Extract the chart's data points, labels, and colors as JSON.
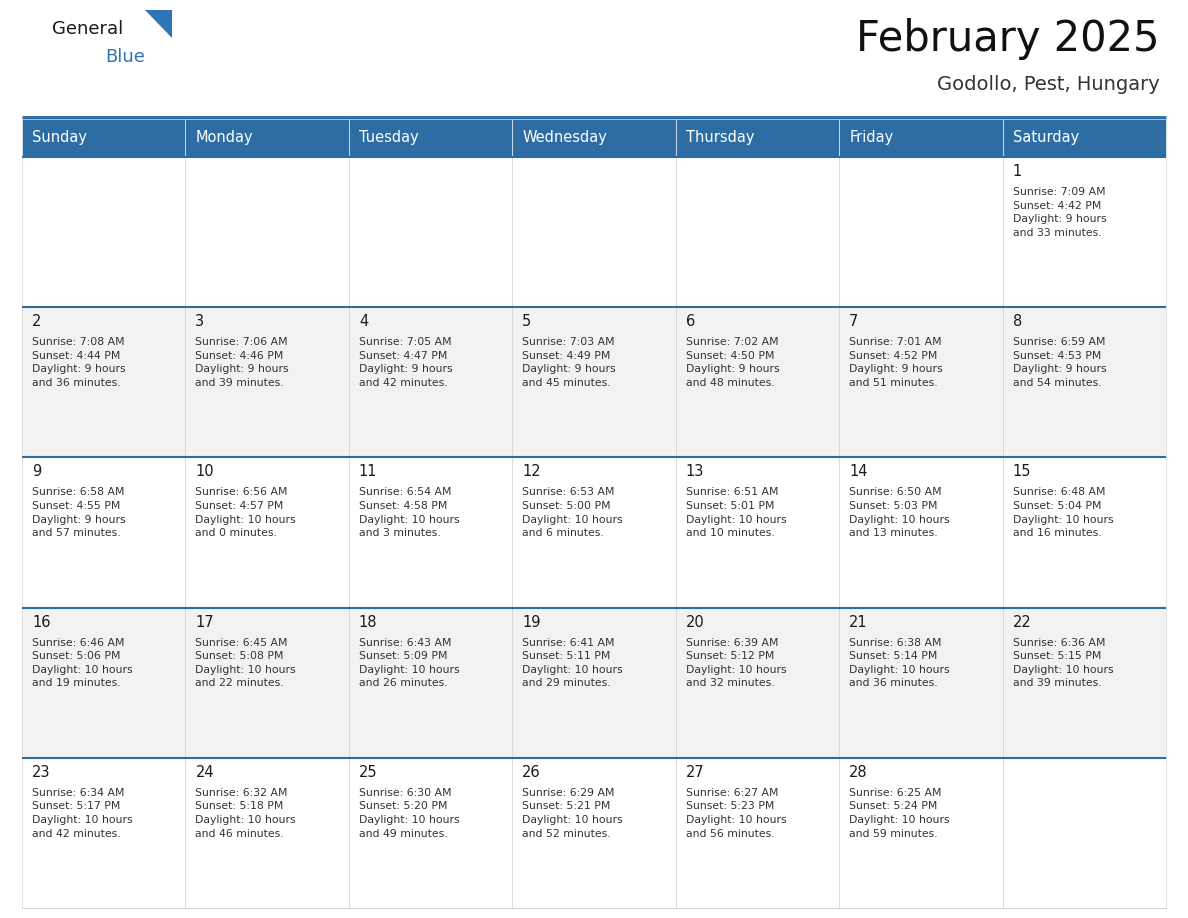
{
  "title": "February 2025",
  "subtitle": "Godollo, Pest, Hungary",
  "header_color": "#2E6DA4",
  "header_text_color": "#FFFFFF",
  "bg_color": "#FFFFFF",
  "cell_bg_white": "#FFFFFF",
  "cell_bg_gray": "#F2F2F2",
  "row_border_color": "#2E6DA4",
  "cell_border_color": "#CCCCCC",
  "text_color": "#1a1a1a",
  "info_color": "#333333",
  "logo_general_color": "#1a1a1a",
  "logo_blue_color": "#2E75B6",
  "logo_triangle_color": "#2E75B6",
  "days_of_week": [
    "Sunday",
    "Monday",
    "Tuesday",
    "Wednesday",
    "Thursday",
    "Friday",
    "Saturday"
  ],
  "calendar": [
    [
      {
        "day": null,
        "info": ""
      },
      {
        "day": null,
        "info": ""
      },
      {
        "day": null,
        "info": ""
      },
      {
        "day": null,
        "info": ""
      },
      {
        "day": null,
        "info": ""
      },
      {
        "day": null,
        "info": ""
      },
      {
        "day": 1,
        "info": "Sunrise: 7:09 AM\nSunset: 4:42 PM\nDaylight: 9 hours\nand 33 minutes."
      }
    ],
    [
      {
        "day": 2,
        "info": "Sunrise: 7:08 AM\nSunset: 4:44 PM\nDaylight: 9 hours\nand 36 minutes."
      },
      {
        "day": 3,
        "info": "Sunrise: 7:06 AM\nSunset: 4:46 PM\nDaylight: 9 hours\nand 39 minutes."
      },
      {
        "day": 4,
        "info": "Sunrise: 7:05 AM\nSunset: 4:47 PM\nDaylight: 9 hours\nand 42 minutes."
      },
      {
        "day": 5,
        "info": "Sunrise: 7:03 AM\nSunset: 4:49 PM\nDaylight: 9 hours\nand 45 minutes."
      },
      {
        "day": 6,
        "info": "Sunrise: 7:02 AM\nSunset: 4:50 PM\nDaylight: 9 hours\nand 48 minutes."
      },
      {
        "day": 7,
        "info": "Sunrise: 7:01 AM\nSunset: 4:52 PM\nDaylight: 9 hours\nand 51 minutes."
      },
      {
        "day": 8,
        "info": "Sunrise: 6:59 AM\nSunset: 4:53 PM\nDaylight: 9 hours\nand 54 minutes."
      }
    ],
    [
      {
        "day": 9,
        "info": "Sunrise: 6:58 AM\nSunset: 4:55 PM\nDaylight: 9 hours\nand 57 minutes."
      },
      {
        "day": 10,
        "info": "Sunrise: 6:56 AM\nSunset: 4:57 PM\nDaylight: 10 hours\nand 0 minutes."
      },
      {
        "day": 11,
        "info": "Sunrise: 6:54 AM\nSunset: 4:58 PM\nDaylight: 10 hours\nand 3 minutes."
      },
      {
        "day": 12,
        "info": "Sunrise: 6:53 AM\nSunset: 5:00 PM\nDaylight: 10 hours\nand 6 minutes."
      },
      {
        "day": 13,
        "info": "Sunrise: 6:51 AM\nSunset: 5:01 PM\nDaylight: 10 hours\nand 10 minutes."
      },
      {
        "day": 14,
        "info": "Sunrise: 6:50 AM\nSunset: 5:03 PM\nDaylight: 10 hours\nand 13 minutes."
      },
      {
        "day": 15,
        "info": "Sunrise: 6:48 AM\nSunset: 5:04 PM\nDaylight: 10 hours\nand 16 minutes."
      }
    ],
    [
      {
        "day": 16,
        "info": "Sunrise: 6:46 AM\nSunset: 5:06 PM\nDaylight: 10 hours\nand 19 minutes."
      },
      {
        "day": 17,
        "info": "Sunrise: 6:45 AM\nSunset: 5:08 PM\nDaylight: 10 hours\nand 22 minutes."
      },
      {
        "day": 18,
        "info": "Sunrise: 6:43 AM\nSunset: 5:09 PM\nDaylight: 10 hours\nand 26 minutes."
      },
      {
        "day": 19,
        "info": "Sunrise: 6:41 AM\nSunset: 5:11 PM\nDaylight: 10 hours\nand 29 minutes."
      },
      {
        "day": 20,
        "info": "Sunrise: 6:39 AM\nSunset: 5:12 PM\nDaylight: 10 hours\nand 32 minutes."
      },
      {
        "day": 21,
        "info": "Sunrise: 6:38 AM\nSunset: 5:14 PM\nDaylight: 10 hours\nand 36 minutes."
      },
      {
        "day": 22,
        "info": "Sunrise: 6:36 AM\nSunset: 5:15 PM\nDaylight: 10 hours\nand 39 minutes."
      }
    ],
    [
      {
        "day": 23,
        "info": "Sunrise: 6:34 AM\nSunset: 5:17 PM\nDaylight: 10 hours\nand 42 minutes."
      },
      {
        "day": 24,
        "info": "Sunrise: 6:32 AM\nSunset: 5:18 PM\nDaylight: 10 hours\nand 46 minutes."
      },
      {
        "day": 25,
        "info": "Sunrise: 6:30 AM\nSunset: 5:20 PM\nDaylight: 10 hours\nand 49 minutes."
      },
      {
        "day": 26,
        "info": "Sunrise: 6:29 AM\nSunset: 5:21 PM\nDaylight: 10 hours\nand 52 minutes."
      },
      {
        "day": 27,
        "info": "Sunrise: 6:27 AM\nSunset: 5:23 PM\nDaylight: 10 hours\nand 56 minutes."
      },
      {
        "day": 28,
        "info": "Sunrise: 6:25 AM\nSunset: 5:24 PM\nDaylight: 10 hours\nand 59 minutes."
      },
      {
        "day": null,
        "info": ""
      }
    ]
  ]
}
